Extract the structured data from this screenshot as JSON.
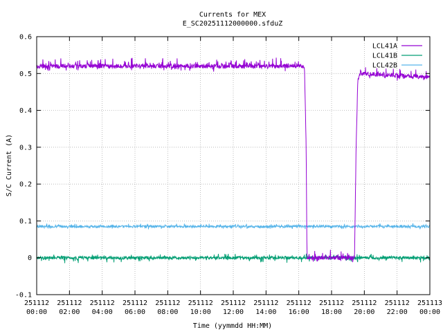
{
  "chart_data": {
    "type": "line",
    "title": "Currents for MEX",
    "subtitle": "E_SC20251112000000.sfduZ",
    "xlabel": "Time (yymmdd HH:MM)",
    "ylabel": "S/C Current (A)",
    "xlim_hours": [
      0,
      24
    ],
    "ylim": [
      -0.1,
      0.6
    ],
    "grid": true,
    "legend_position": "top-right",
    "x_ticks": [
      {
        "date": "251112",
        "time": "00:00"
      },
      {
        "date": "251112",
        "time": "02:00"
      },
      {
        "date": "251112",
        "time": "04:00"
      },
      {
        "date": "251112",
        "time": "06:00"
      },
      {
        "date": "251112",
        "time": "08:00"
      },
      {
        "date": "251112",
        "time": "10:00"
      },
      {
        "date": "251112",
        "time": "12:00"
      },
      {
        "date": "251112",
        "time": "14:00"
      },
      {
        "date": "251112",
        "time": "16:00"
      },
      {
        "date": "251112",
        "time": "18:00"
      },
      {
        "date": "251112",
        "time": "20:00"
      },
      {
        "date": "251112",
        "time": "22:00"
      },
      {
        "date": "251113",
        "time": "00:00"
      }
    ],
    "y_ticks": [
      "-0.1",
      "0",
      "0.1",
      "0.2",
      "0.3",
      "0.4",
      "0.5",
      "0.6"
    ],
    "series": [
      {
        "name": "LCL41A",
        "color": "#9400d3",
        "points": [
          [
            0.0,
            0.52
          ],
          [
            16.25,
            0.52
          ],
          [
            16.35,
            0.51
          ],
          [
            16.45,
            0.3
          ],
          [
            16.5,
            0.0
          ],
          [
            19.4,
            0.0
          ],
          [
            19.5,
            0.3
          ],
          [
            19.6,
            0.48
          ],
          [
            19.75,
            0.5
          ],
          [
            24.0,
            0.49
          ]
        ]
      },
      {
        "name": "LCL41B",
        "color": "#009e73",
        "points": [
          [
            0.0,
            0.0
          ],
          [
            24.0,
            0.0
          ]
        ]
      },
      {
        "name": "LCL42B",
        "color": "#56b4e9",
        "points": [
          [
            0.0,
            0.085
          ],
          [
            24.0,
            0.085
          ]
        ]
      }
    ]
  }
}
